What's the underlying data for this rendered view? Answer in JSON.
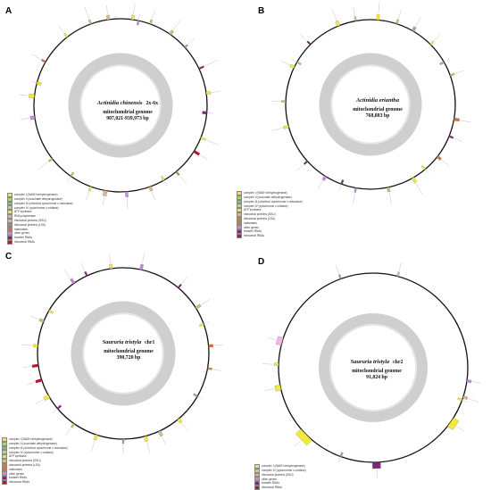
{
  "panels": [
    {
      "label": "A",
      "species": "Actinidia chinensis",
      "species_suffix": "2x-6x",
      "line2": "mitochondrial genome",
      "line3": "907,021-939,973 bp",
      "legend": [
        {
          "text": "complex I (NADH dehydrogenase)",
          "color": "#f2ea3a"
        },
        {
          "text": "complex II (succinate dehydrogenase)",
          "color": "#a9d26e"
        },
        {
          "text": "complex III (ubichinol cytochrome c reductase)",
          "color": "#7dc86a"
        },
        {
          "text": "complex IV (cytochrome c oxidase)",
          "color": "#c7c7a0"
        },
        {
          "text": "ATP synthase",
          "color": "#d8e27a"
        },
        {
          "text": "RNA polymerase",
          "color": "#e7a9a9"
        },
        {
          "text": "ribosomal proteins (SSU)",
          "color": "#d7b98a"
        },
        {
          "text": "ribosomal proteins (LSU)",
          "color": "#b8864e"
        },
        {
          "text": "maturases",
          "color": "#e06a3c"
        },
        {
          "text": "other genes",
          "color": "#c58bd6"
        },
        {
          "text": "transfer RNAs",
          "color": "#7a2a7a"
        },
        {
          "text": "ribosomal RNAs",
          "color": "#c8102e"
        }
      ]
    },
    {
      "label": "B",
      "species": "Actinidia eriantha",
      "species_suffix": "",
      "line2": "mitochondrial genome",
      "line3": "768,883 bp",
      "legend": [
        {
          "text": "complex I (NADH dehydrogenase)",
          "color": "#f2ea3a"
        },
        {
          "text": "complex II (succinate dehydrogenase)",
          "color": "#a9d26e"
        },
        {
          "text": "complex III (ubichinol cytochrome c reductase)",
          "color": "#7dc86a"
        },
        {
          "text": "complex IV (cytochrome c oxidase)",
          "color": "#c7c7a0"
        },
        {
          "text": "ATP synthase",
          "color": "#d8e27a"
        },
        {
          "text": "ribosomal proteins (SSU)",
          "color": "#d7b98a"
        },
        {
          "text": "ribosomal proteins (LSU)",
          "color": "#b8864e"
        },
        {
          "text": "maturases",
          "color": "#e06a3c"
        },
        {
          "text": "other genes",
          "color": "#c58bd6"
        },
        {
          "text": "transfer RNAs",
          "color": "#7a2a7a"
        },
        {
          "text": "ribosomal RNAs",
          "color": "#c8102e"
        }
      ]
    },
    {
      "label": "C",
      "species": "Saururia tristyla",
      "species_suffix": "chr1",
      "line2": "mitochondrial genome",
      "line3": "390,720 bp",
      "legend": [
        {
          "text": "complex I (NADH dehydrogenase)",
          "color": "#f2ea3a"
        },
        {
          "text": "complex II (succinate dehydrogenase)",
          "color": "#a9d26e"
        },
        {
          "text": "complex III (ubichinol cytochrome c reductase)",
          "color": "#7dc86a"
        },
        {
          "text": "complex IV (cytochrome c oxidase)",
          "color": "#c7c7a0"
        },
        {
          "text": "ATP synthase",
          "color": "#d8e27a"
        },
        {
          "text": "ribosomal proteins (SSU)",
          "color": "#d7b98a"
        },
        {
          "text": "ribosomal proteins (LSU)",
          "color": "#b8864e"
        },
        {
          "text": "maturases",
          "color": "#e06a3c"
        },
        {
          "text": "other genes",
          "color": "#c58bd6"
        },
        {
          "text": "transfer RNAs",
          "color": "#7a2a7a"
        },
        {
          "text": "ribosomal RNAs",
          "color": "#c8102e"
        }
      ]
    },
    {
      "label": "D",
      "species": "Saururia tristyla",
      "species_suffix": "chr2",
      "line2": "mitochondrial genome",
      "line3": "91,824 bp",
      "legend": [
        {
          "text": "complex I (NADH dehydrogenase)",
          "color": "#f2ea3a"
        },
        {
          "text": "complex IV (cytochrome c oxidase)",
          "color": "#c7c7a0"
        },
        {
          "text": "ribosomal proteins (SSU)",
          "color": "#d7b98a"
        },
        {
          "text": "other genes",
          "color": "#c58bd6"
        },
        {
          "text": "transfer RNAs",
          "color": "#7a2a7a"
        },
        {
          "text": "ribosomal RNAs",
          "color": "#c8102e"
        }
      ]
    }
  ]
}
